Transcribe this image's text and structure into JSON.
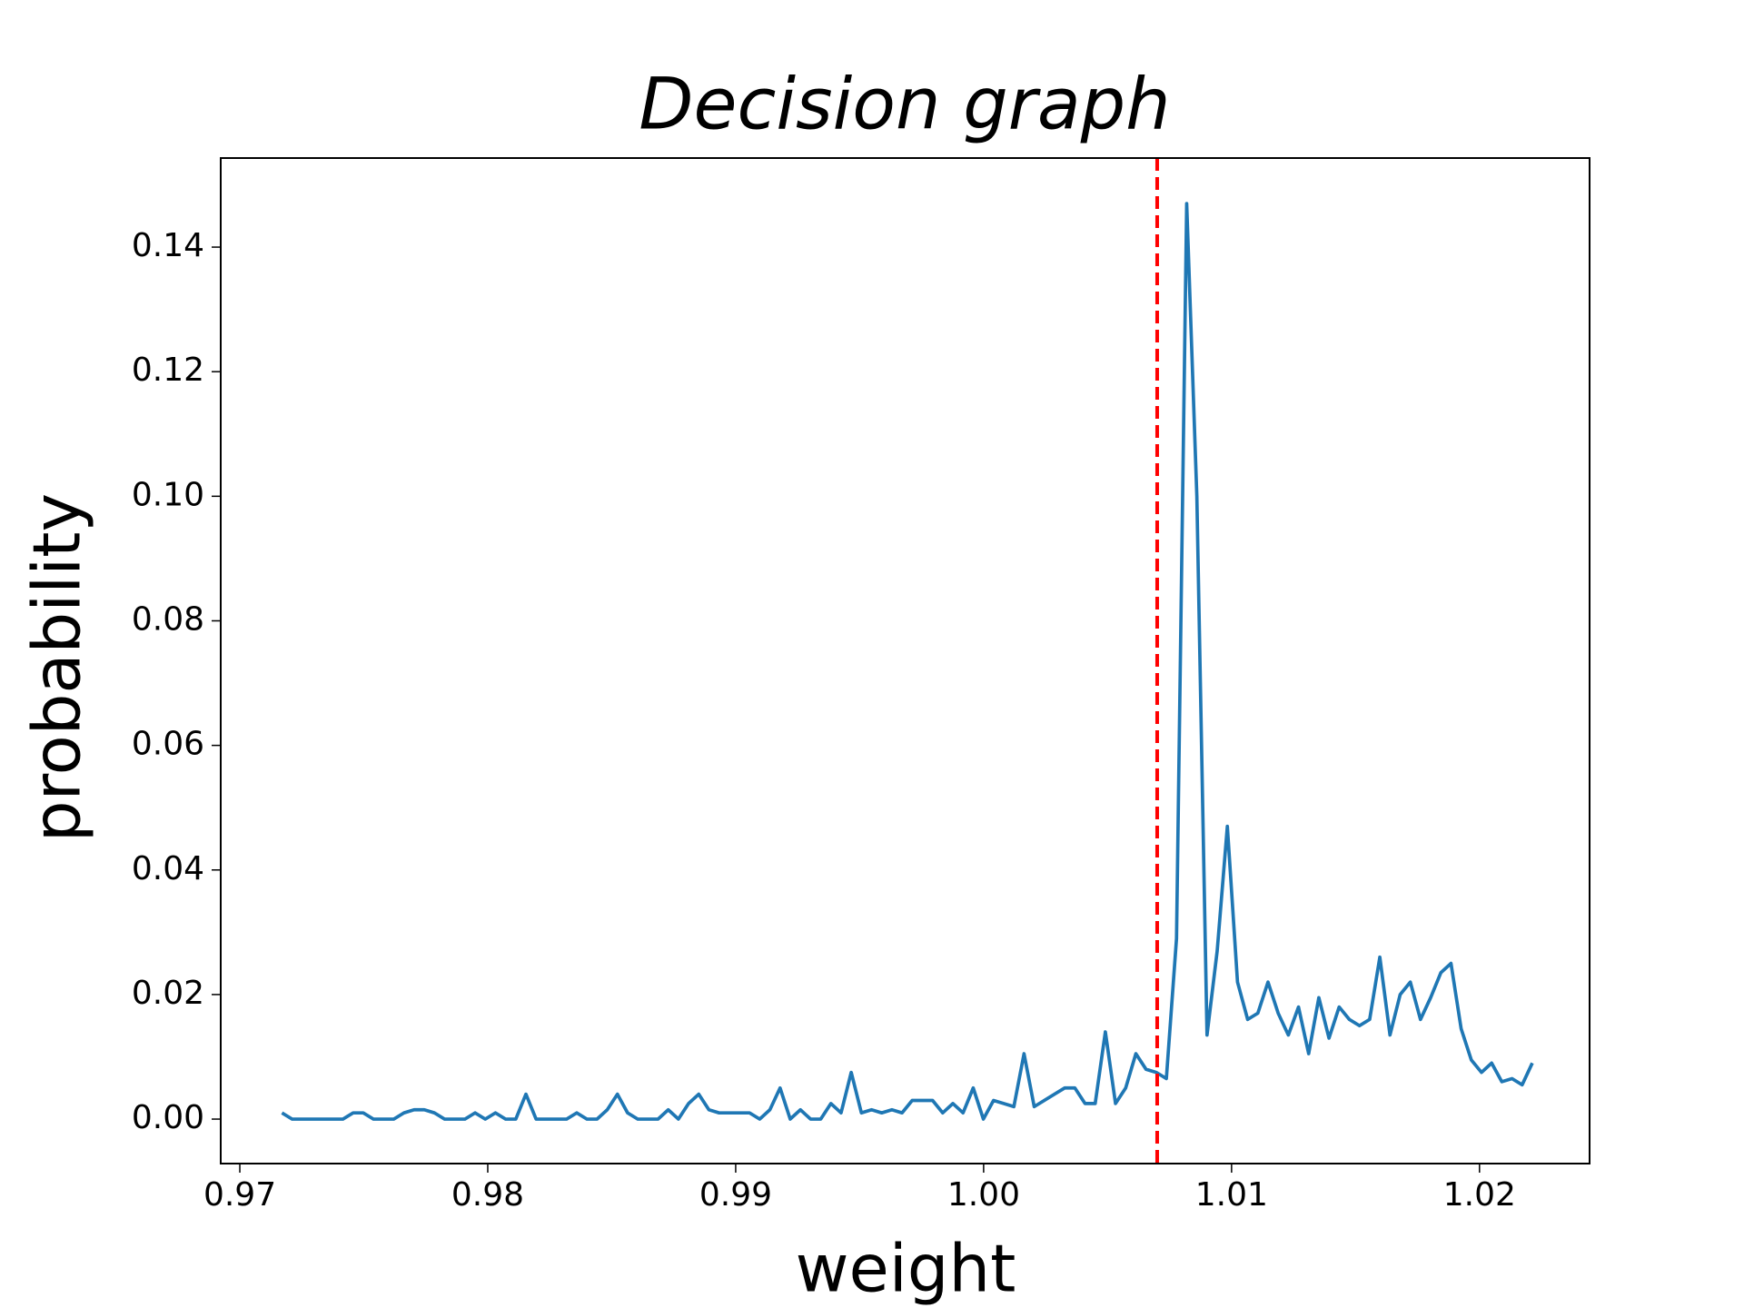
{
  "chart_data": {
    "type": "line",
    "title": "Decision graph",
    "x_label": "weight",
    "y_label": "probability",
    "x": [
      0.9717,
      0.97211,
      0.97252,
      0.97293,
      0.97334,
      0.97375,
      0.97416,
      0.97457,
      0.97498,
      0.97539,
      0.9758,
      0.97621,
      0.97662,
      0.97703,
      0.97744,
      0.97785,
      0.97826,
      0.97867,
      0.97908,
      0.97949,
      0.9799,
      0.98031,
      0.98072,
      0.98113,
      0.98154,
      0.98195,
      0.98236,
      0.98277,
      0.98318,
      0.98359,
      0.984,
      0.98441,
      0.98482,
      0.98523,
      0.98564,
      0.98605,
      0.98646,
      0.98687,
      0.98728,
      0.98769,
      0.9881,
      0.98851,
      0.98892,
      0.98933,
      0.98974,
      0.99015,
      0.99056,
      0.99097,
      0.99138,
      0.99179,
      0.9922,
      0.99261,
      0.99302,
      0.99343,
      0.99384,
      0.99425,
      0.99466,
      0.99507,
      0.99548,
      0.99589,
      0.9963,
      0.99671,
      0.99712,
      0.99753,
      0.99794,
      0.99835,
      0.99876,
      0.99917,
      0.99958,
      0.99999,
      1.0004,
      1.00081,
      1.00122,
      1.00163,
      1.00204,
      1.00245,
      1.00286,
      1.00327,
      1.00368,
      1.00409,
      1.0045,
      1.00491,
      1.00532,
      1.00573,
      1.00614,
      1.00655,
      1.00696,
      1.00737,
      1.00778,
      1.00819,
      1.0086,
      1.00901,
      1.00942,
      1.00983,
      1.01024,
      1.01065,
      1.01106,
      1.01147,
      1.01188,
      1.01229,
      1.0127,
      1.01311,
      1.01352,
      1.01393,
      1.01434,
      1.01475,
      1.01516,
      1.01557,
      1.01598,
      1.01639,
      1.0168,
      1.01721,
      1.01762,
      1.01803,
      1.01844,
      1.01885,
      1.01926,
      1.01967,
      1.02008,
      1.02049,
      1.0209,
      1.02131,
      1.02172,
      1.02213
    ],
    "series": [
      {
        "color": "#1f77b4",
        "values": [
          0.001,
          0,
          0,
          0,
          0,
          0,
          0,
          0.001,
          0.001,
          0,
          0,
          0,
          0.001,
          0.0015,
          0.0015,
          0.001,
          0,
          0,
          0,
          0.001,
          0,
          0.001,
          0,
          0,
          0.004,
          0,
          0,
          0,
          0,
          0.001,
          0,
          0,
          0.0015,
          0.004,
          0.001,
          0,
          0,
          0,
          0.0015,
          0,
          0.0025,
          0.004,
          0.0015,
          0.001,
          0.001,
          0.001,
          0.001,
          0,
          0.0015,
          0.005,
          0,
          0.0015,
          0,
          0,
          0.0025,
          0.001,
          0.0075,
          0.001,
          0.0015,
          0.001,
          0.0015,
          0.001,
          0.003,
          0.003,
          0.003,
          0.001,
          0.0025,
          0.001,
          0.005,
          0,
          0.003,
          0.0025,
          0.002,
          0.0105,
          0.002,
          0.003,
          0.004,
          0.005,
          0.005,
          0.0025,
          0.0025,
          0.014,
          0.0025,
          0.005,
          0.0105,
          0.008,
          0.0075,
          0.0065,
          0.029,
          0.147,
          0.1,
          0.0135,
          0.027,
          0.047,
          0.022,
          0.016,
          0.017,
          0.022,
          0.017,
          0.0135,
          0.018,
          0.0105,
          0.0195,
          0.013,
          0.018,
          0.016,
          0.015,
          0.016,
          0.026,
          0.0135,
          0.02,
          0.022,
          0.016,
          0.0195,
          0.0235,
          0.025,
          0.0145,
          0.0095,
          0.0075,
          0.009,
          0.006,
          0.0065,
          0.0055,
          0.009
        ]
      }
    ],
    "vline": {
      "x": 1.007,
      "color": "#ff0000",
      "dashed": true
    },
    "xlim": [
      0.96923,
      1.02444
    ],
    "ylim": [
      -0.00714,
      0.1543
    ],
    "xticks": [
      0.97,
      0.98,
      0.99,
      {
        "value": 1.0,
        "label": "1.00"
      },
      1.01,
      1.02
    ],
    "yticks": [
      {
        "value": 0,
        "label": "0.00"
      },
      0.02,
      0.04,
      0.06,
      0.08,
      {
        "value": 0.1,
        "label": "0.10"
      },
      0.12,
      0.14
    ],
    "grid": false
  }
}
